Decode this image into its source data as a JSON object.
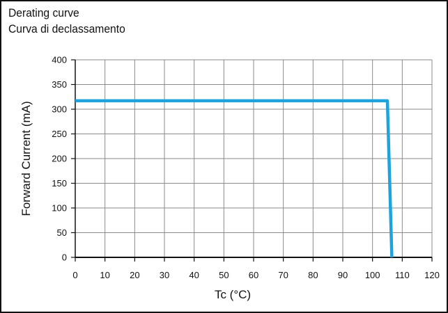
{
  "chart_data": {
    "type": "line",
    "title_lines": [
      "Derating curve",
      "Curva di declassamento"
    ],
    "xlabel": "Tc (°C)",
    "ylabel": "Forward Current (mA)",
    "xlim": [
      0,
      120
    ],
    "ylim": [
      0,
      400
    ],
    "x_ticks": [
      0,
      10,
      20,
      30,
      40,
      50,
      60,
      70,
      80,
      90,
      100,
      110,
      120
    ],
    "y_ticks": [
      0,
      50,
      100,
      150,
      200,
      250,
      300,
      350,
      400
    ],
    "grid": true,
    "series": [
      {
        "x": [
          0,
          105,
          106.5
        ],
        "y": [
          317,
          317,
          0
        ],
        "color": "#1fa3dc"
      }
    ]
  }
}
